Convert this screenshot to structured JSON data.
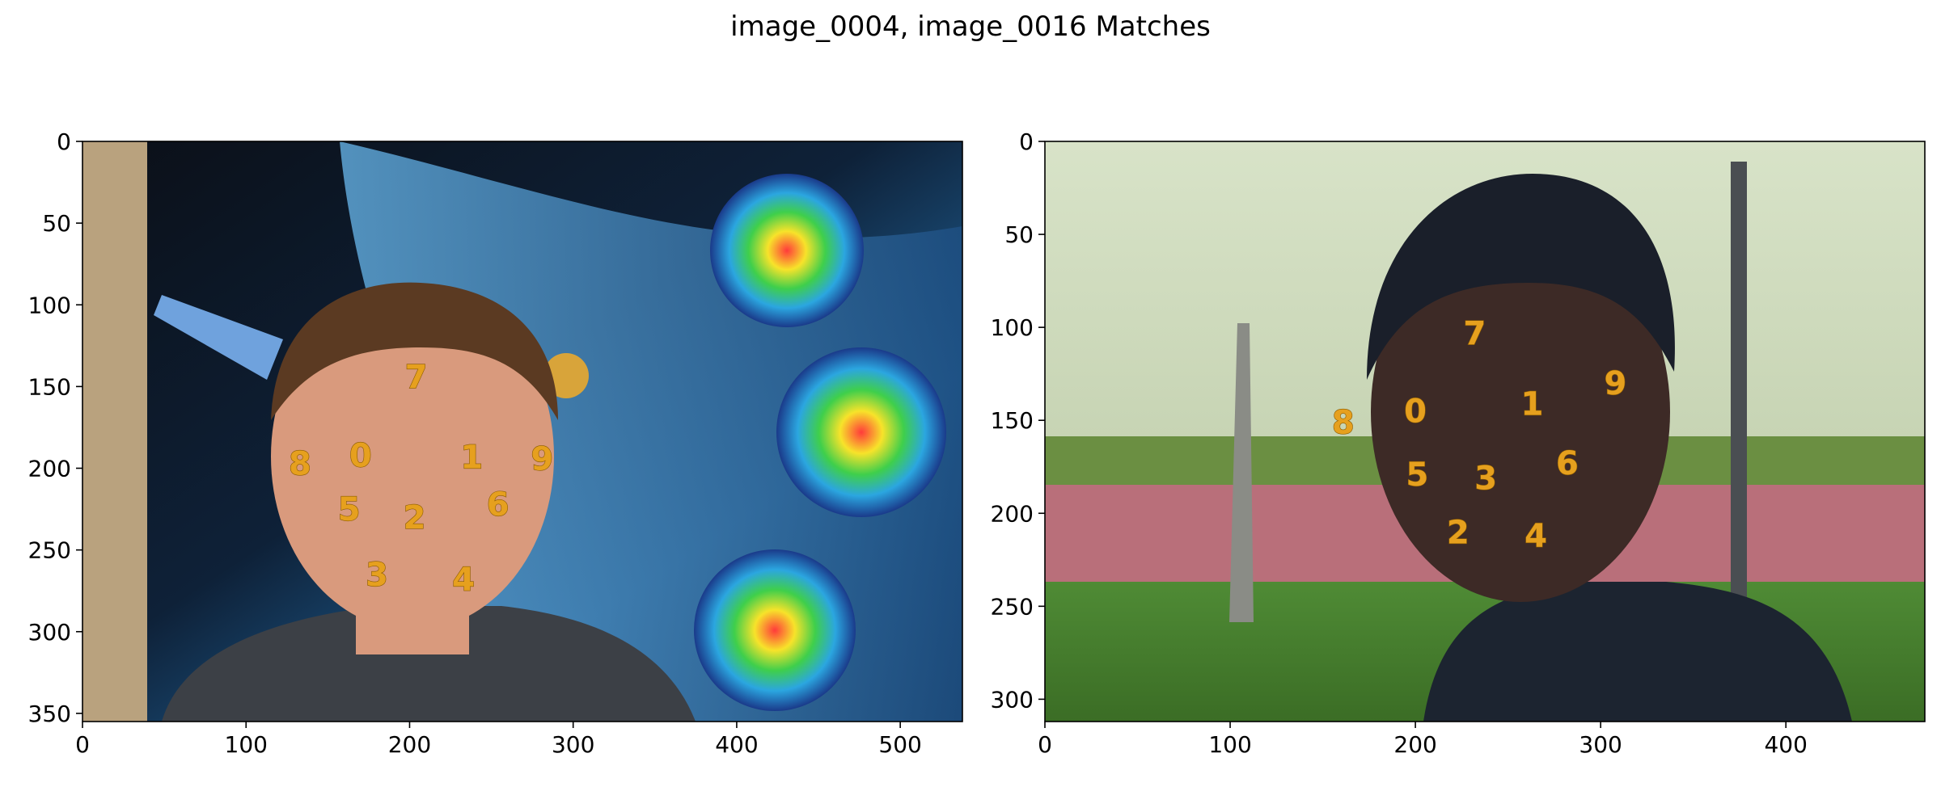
{
  "chart_data": {
    "type": "scatter",
    "title": "image_0004, image_0016 Matches",
    "panels": [
      {
        "name": "image_0004",
        "width": 538,
        "height": 355,
        "xlim": [
          0,
          538
        ],
        "ylim": [
          355,
          0
        ],
        "xticks": [
          0,
          100,
          200,
          300,
          400,
          500
        ],
        "yticks": [
          0,
          50,
          100,
          150,
          200,
          250,
          300,
          350
        ],
        "keypoints": [
          {
            "label": "0",
            "x": 170,
            "y": 192
          },
          {
            "label": "1",
            "x": 238,
            "y": 193
          },
          {
            "label": "2",
            "x": 203,
            "y": 230
          },
          {
            "label": "3",
            "x": 180,
            "y": 265
          },
          {
            "label": "4",
            "x": 233,
            "y": 268
          },
          {
            "label": "5",
            "x": 163,
            "y": 225
          },
          {
            "label": "6",
            "x": 254,
            "y": 222
          },
          {
            "label": "7",
            "x": 204,
            "y": 144
          },
          {
            "label": "8",
            "x": 133,
            "y": 197
          },
          {
            "label": "9",
            "x": 281,
            "y": 194
          }
        ]
      },
      {
        "name": "image_0016",
        "width": 475,
        "height": 312,
        "xlim": [
          0,
          475
        ],
        "ylim": [
          312,
          0
        ],
        "xticks": [
          0,
          100,
          200,
          300,
          400
        ],
        "yticks": [
          0,
          50,
          100,
          150,
          200,
          250,
          300
        ],
        "keypoints": [
          {
            "label": "0",
            "x": 200,
            "y": 145
          },
          {
            "label": "1",
            "x": 263,
            "y": 141
          },
          {
            "label": "2",
            "x": 223,
            "y": 210
          },
          {
            "label": "3",
            "x": 238,
            "y": 181
          },
          {
            "label": "4",
            "x": 265,
            "y": 212
          },
          {
            "label": "5",
            "x": 201,
            "y": 179
          },
          {
            "label": "6",
            "x": 282,
            "y": 173
          },
          {
            "label": "7",
            "x": 232,
            "y": 103
          },
          {
            "label": "8",
            "x": 161,
            "y": 151
          },
          {
            "label": "9",
            "x": 308,
            "y": 130
          }
        ]
      }
    ]
  },
  "colors": {
    "marker": "#e6a01e",
    "marker_edge": "#8a5a00"
  }
}
